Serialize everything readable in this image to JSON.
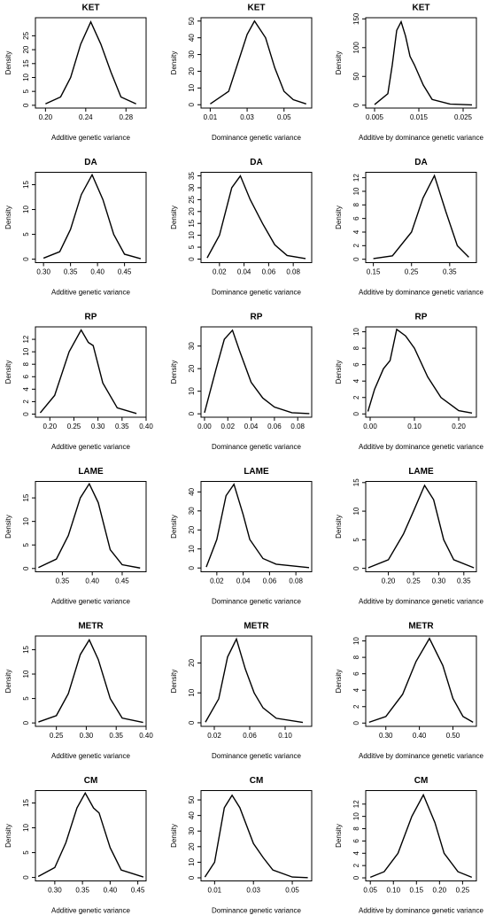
{
  "chart_data": [
    {
      "type": "line",
      "title": "KET",
      "xlabel": "Additive genetic variance",
      "ylabel": "Density",
      "x": [
        0.2,
        0.215,
        0.225,
        0.235,
        0.245,
        0.255,
        0.265,
        0.275,
        0.29
      ],
      "values": [
        0.5,
        3,
        10,
        22,
        30,
        22,
        12,
        3,
        0.5
      ],
      "xlim": [
        0.19,
        0.3
      ],
      "ylim": [
        -1,
        31.5
      ],
      "xticks": [
        {
          "value": 0.2,
          "label": "0.20"
        },
        0.24,
        0.28
      ],
      "yticks": [
        0,
        5,
        10,
        15,
        20,
        25
      ],
      "color": "#000000"
    },
    {
      "type": "line",
      "title": "KET",
      "xlabel": "Dominance genetic variance",
      "ylabel": "Density",
      "x": [
        0.01,
        0.02,
        0.025,
        0.03,
        0.034,
        0.04,
        0.045,
        0.05,
        0.055,
        0.062
      ],
      "values": [
        0.5,
        8,
        25,
        42,
        50,
        40,
        22,
        8,
        3,
        0.5
      ],
      "xlim": [
        0.005,
        0.065
      ],
      "ylim": [
        -2,
        52
      ],
      "xticks": [
        0.01,
        0.03,
        0.05
      ],
      "yticks": [
        0,
        10,
        20,
        30,
        40,
        50
      ],
      "color": "#000000"
    },
    {
      "type": "line",
      "title": "KET",
      "xlabel": "Additive by dominance genetic variance",
      "ylabel": "Density",
      "x": [
        0.005,
        0.008,
        0.009,
        0.01,
        0.011,
        0.012,
        0.013,
        0.014,
        0.016,
        0.018,
        0.022,
        0.027
      ],
      "values": [
        1,
        20,
        70,
        130,
        145,
        120,
        85,
        70,
        35,
        10,
        2,
        0.5
      ],
      "xlim": [
        0.003,
        0.028
      ],
      "ylim": [
        -5,
        152
      ],
      "xticks": [
        0.005,
        0.015,
        0.025
      ],
      "yticks": [
        0,
        50,
        100,
        150
      ],
      "color": "#000000"
    },
    {
      "type": "line",
      "title": "DA",
      "xlabel": "Additive genetic variance",
      "ylabel": "Density",
      "x": [
        0.3,
        0.33,
        0.35,
        0.37,
        0.39,
        0.41,
        0.43,
        0.45,
        0.48
      ],
      "values": [
        0.2,
        1.5,
        6,
        13,
        17,
        12,
        5,
        1,
        0.1
      ],
      "xlim": [
        0.285,
        0.49
      ],
      "ylim": [
        -0.7,
        17.5
      ],
      "xticks": [
        {
          "value": 0.3,
          "label": "0.30"
        },
        0.35,
        {
          "value": 0.4,
          "label": "0.40"
        },
        0.45
      ],
      "yticks": [
        0,
        5,
        10,
        15
      ],
      "color": "#000000"
    },
    {
      "type": "line",
      "title": "DA",
      "xlabel": "Dominance genetic variance",
      "ylabel": "Density",
      "x": [
        0.01,
        0.02,
        0.03,
        0.037,
        0.045,
        0.055,
        0.065,
        0.075,
        0.09
      ],
      "values": [
        0.5,
        10,
        30,
        35,
        25,
        15,
        6,
        1.5,
        0.2
      ],
      "xlim": [
        0.005,
        0.095
      ],
      "ylim": [
        -1.5,
        36.5
      ],
      "xticks": [
        0.02,
        0.04,
        0.06,
        0.08
      ],
      "yticks": [
        0,
        5,
        10,
        15,
        20,
        25,
        30,
        35
      ],
      "color": "#000000"
    },
    {
      "type": "line",
      "title": "DA",
      "xlabel": "Additive by dominance genetic variance",
      "ylabel": "Density",
      "x": [
        0.15,
        0.2,
        0.25,
        0.28,
        0.31,
        0.34,
        0.37,
        0.4
      ],
      "values": [
        0.1,
        0.5,
        4,
        9,
        12.3,
        7,
        2,
        0.3
      ],
      "xlim": [
        0.13,
        0.42
      ],
      "ylim": [
        -0.5,
        12.8
      ],
      "xticks": [
        0.15,
        0.25,
        0.35
      ],
      "yticks": [
        0,
        2,
        4,
        6,
        8,
        10,
        12
      ],
      "color": "#000000"
    },
    {
      "type": "line",
      "title": "RP",
      "xlabel": "Additive genetic variance",
      "ylabel": "Density",
      "x": [
        0.18,
        0.21,
        0.24,
        0.265,
        0.28,
        0.29,
        0.31,
        0.34,
        0.38
      ],
      "values": [
        0.2,
        3,
        10,
        13.5,
        11.5,
        11,
        5,
        1,
        0.1
      ],
      "xlim": [
        0.17,
        0.4
      ],
      "ylim": [
        -0.5,
        14
      ],
      "xticks": [
        {
          "value": 0.2,
          "label": "0.20"
        },
        0.25,
        {
          "value": 0.3,
          "label": "0.30"
        },
        0.35,
        {
          "value": 0.4,
          "label": "0.40"
        }
      ],
      "yticks": [
        0,
        2,
        4,
        6,
        8,
        10,
        12
      ],
      "color": "#000000"
    },
    {
      "type": "line",
      "title": "RP",
      "xlabel": "Dominance genetic variance",
      "ylabel": "Density",
      "x": [
        0,
        0.01,
        0.017,
        0.024,
        0.03,
        0.04,
        0.05,
        0.06,
        0.075,
        0.09
      ],
      "values": [
        0.5,
        20,
        33,
        37,
        28,
        14,
        7,
        3,
        0.5,
        0.1
      ],
      "xlim": [
        -0.003,
        0.092
      ],
      "ylim": [
        -1.5,
        38.5
      ],
      "xticks": [
        {
          "value": 0,
          "label": "0.00"
        },
        0.02,
        0.04,
        0.06,
        0.08
      ],
      "yticks": [
        0,
        10,
        20,
        30
      ],
      "color": "#000000"
    },
    {
      "type": "line",
      "title": "RP",
      "xlabel": "Additive by dominance genetic variance",
      "ylabel": "Density",
      "x": [
        -0.005,
        0.01,
        0.03,
        0.045,
        0.06,
        0.08,
        0.1,
        0.13,
        0.16,
        0.2,
        0.23
      ],
      "values": [
        0.3,
        3,
        5.5,
        6.5,
        10.3,
        9.5,
        8,
        4.5,
        2,
        0.4,
        0.1
      ],
      "xlim": [
        -0.01,
        0.24
      ],
      "ylim": [
        -0.4,
        10.6
      ],
      "xticks": [
        {
          "value": 0,
          "label": "0.00"
        },
        {
          "value": 0.1,
          "label": "0.10"
        },
        {
          "value": 0.2,
          "label": "0.20"
        }
      ],
      "yticks": [
        0,
        2,
        4,
        6,
        8,
        10
      ],
      "color": "#000000"
    },
    {
      "type": "line",
      "title": "LAME",
      "xlabel": "Additive genetic variance",
      "ylabel": "Density",
      "x": [
        0.31,
        0.34,
        0.36,
        0.38,
        0.395,
        0.41,
        0.43,
        0.45,
        0.48
      ],
      "values": [
        0.2,
        2,
        7,
        15,
        18,
        14,
        4,
        0.8,
        0.1
      ],
      "xlim": [
        0.305,
        0.49
      ],
      "ylim": [
        -0.7,
        18.5
      ],
      "xticks": [
        0.35,
        {
          "value": 0.4,
          "label": "0.40"
        },
        0.45
      ],
      "yticks": [
        0,
        5,
        10,
        15
      ],
      "color": "#000000"
    },
    {
      "type": "line",
      "title": "LAME",
      "xlabel": "Dominance genetic variance",
      "ylabel": "Density",
      "x": [
        0.012,
        0.02,
        0.027,
        0.033,
        0.04,
        0.045,
        0.055,
        0.065,
        0.09
      ],
      "values": [
        0.5,
        15,
        38,
        44,
        28,
        15,
        5,
        2,
        0.2
      ],
      "xlim": [
        0.008,
        0.092
      ],
      "ylim": [
        -2,
        45.5
      ],
      "xticks": [
        0.02,
        0.04,
        0.06,
        0.08
      ],
      "yticks": [
        0,
        10,
        20,
        30,
        40
      ],
      "color": "#000000"
    },
    {
      "type": "line",
      "title": "LAME",
      "xlabel": "Additive by dominance genetic variance",
      "ylabel": "Density",
      "x": [
        0.16,
        0.2,
        0.23,
        0.25,
        0.272,
        0.29,
        0.31,
        0.33,
        0.37
      ],
      "values": [
        0.1,
        1.5,
        6,
        10,
        14.5,
        12,
        5,
        1.5,
        0.1
      ],
      "xlim": [
        0.155,
        0.375
      ],
      "ylim": [
        -0.6,
        15.2
      ],
      "xticks": [
        {
          "value": 0.2,
          "label": "0.20"
        },
        0.25,
        {
          "value": 0.3,
          "label": "0.30"
        },
        0.35
      ],
      "yticks": [
        0,
        5,
        10,
        15
      ],
      "color": "#000000"
    },
    {
      "type": "line",
      "title": "METR",
      "xlabel": "Additive genetic variance",
      "ylabel": "Density",
      "x": [
        0.22,
        0.25,
        0.27,
        0.29,
        0.305,
        0.32,
        0.34,
        0.36,
        0.395
      ],
      "values": [
        0.2,
        1.5,
        6,
        14,
        17,
        13,
        5,
        1,
        0.1
      ],
      "xlim": [
        0.215,
        0.4
      ],
      "ylim": [
        -0.7,
        17.8
      ],
      "xticks": [
        0.25,
        {
          "value": 0.3,
          "label": "0.30"
        },
        0.35,
        {
          "value": 0.4,
          "label": "0.40"
        }
      ],
      "yticks": [
        0,
        5,
        10,
        15
      ],
      "color": "#000000"
    },
    {
      "type": "line",
      "title": "METR",
      "xlabel": "Dominance genetic variance",
      "ylabel": "Density",
      "x": [
        0.01,
        0.025,
        0.035,
        0.045,
        0.055,
        0.065,
        0.075,
        0.09,
        0.12
      ],
      "values": [
        0.2,
        8,
        22,
        28,
        18,
        10,
        5,
        1.5,
        0.1
      ],
      "xlim": [
        0.005,
        0.13
      ],
      "ylim": [
        -1.2,
        29
      ],
      "xticks": [
        0.02,
        0.06,
        {
          "value": 0.1,
          "label": "0.10"
        }
      ],
      "yticks": [
        0,
        10,
        20
      ],
      "color": "#000000"
    },
    {
      "type": "line",
      "title": "METR",
      "xlabel": "Additive by dominance genetic variance",
      "ylabel": "Density",
      "x": [
        0.25,
        0.3,
        0.35,
        0.39,
        0.43,
        0.47,
        0.5,
        0.53,
        0.56
      ],
      "values": [
        0.1,
        0.8,
        3.5,
        7.5,
        10.3,
        7,
        3,
        0.8,
        0.1
      ],
      "xlim": [
        0.24,
        0.57
      ],
      "ylim": [
        -0.4,
        10.6
      ],
      "xticks": [
        {
          "value": 0.3,
          "label": "0.30"
        },
        {
          "value": 0.4,
          "label": "0.40"
        },
        {
          "value": 0.5,
          "label": "0.50"
        }
      ],
      "yticks": [
        0,
        2,
        4,
        6,
        8,
        10
      ],
      "color": "#000000"
    },
    {
      "type": "line",
      "title": "CM",
      "xlabel": "Additive genetic variance",
      "ylabel": "Density",
      "x": [
        0.27,
        0.3,
        0.32,
        0.34,
        0.355,
        0.37,
        0.38,
        0.4,
        0.42,
        0.46
      ],
      "values": [
        0.2,
        2,
        7,
        14,
        17,
        14,
        13,
        6,
        1.5,
        0.1
      ],
      "xlim": [
        0.265,
        0.465
      ],
      "ylim": [
        -0.7,
        17.5
      ],
      "xticks": [
        {
          "value": 0.3,
          "label": "0.30"
        },
        0.35,
        {
          "value": 0.4,
          "label": "0.40"
        },
        0.45
      ],
      "yticks": [
        0,
        5,
        10,
        15
      ],
      "color": "#000000"
    },
    {
      "type": "line",
      "title": "CM",
      "xlabel": "Dominance genetic variance",
      "ylabel": "Density",
      "x": [
        0.005,
        0.01,
        0.015,
        0.019,
        0.023,
        0.03,
        0.035,
        0.04,
        0.05,
        0.058
      ],
      "values": [
        0.5,
        10,
        45,
        53,
        45,
        22,
        13,
        5,
        0.5,
        0.1
      ],
      "xlim": [
        0.003,
        0.06
      ],
      "ylim": [
        -2,
        56
      ],
      "xticks": [
        0.01,
        0.03,
        0.05
      ],
      "yticks": [
        0,
        10,
        20,
        30,
        40,
        50
      ],
      "color": "#000000"
    },
    {
      "type": "line",
      "title": "CM",
      "xlabel": "Additive by dominance genetic variance",
      "ylabel": "Density",
      "x": [
        0.05,
        0.08,
        0.11,
        0.14,
        0.165,
        0.19,
        0.21,
        0.24,
        0.27
      ],
      "values": [
        0.1,
        1,
        4,
        10,
        13.5,
        9,
        4,
        1,
        0.1
      ],
      "xlim": [
        0.04,
        0.28
      ],
      "ylim": [
        -0.5,
        14.2
      ],
      "xticks": [
        0.05,
        {
          "value": 0.1,
          "label": "0.10"
        },
        0.15,
        {
          "value": 0.2,
          "label": "0.20"
        },
        0.25
      ],
      "yticks": [
        0,
        2,
        4,
        6,
        8,
        10,
        12
      ],
      "color": "#000000"
    }
  ]
}
